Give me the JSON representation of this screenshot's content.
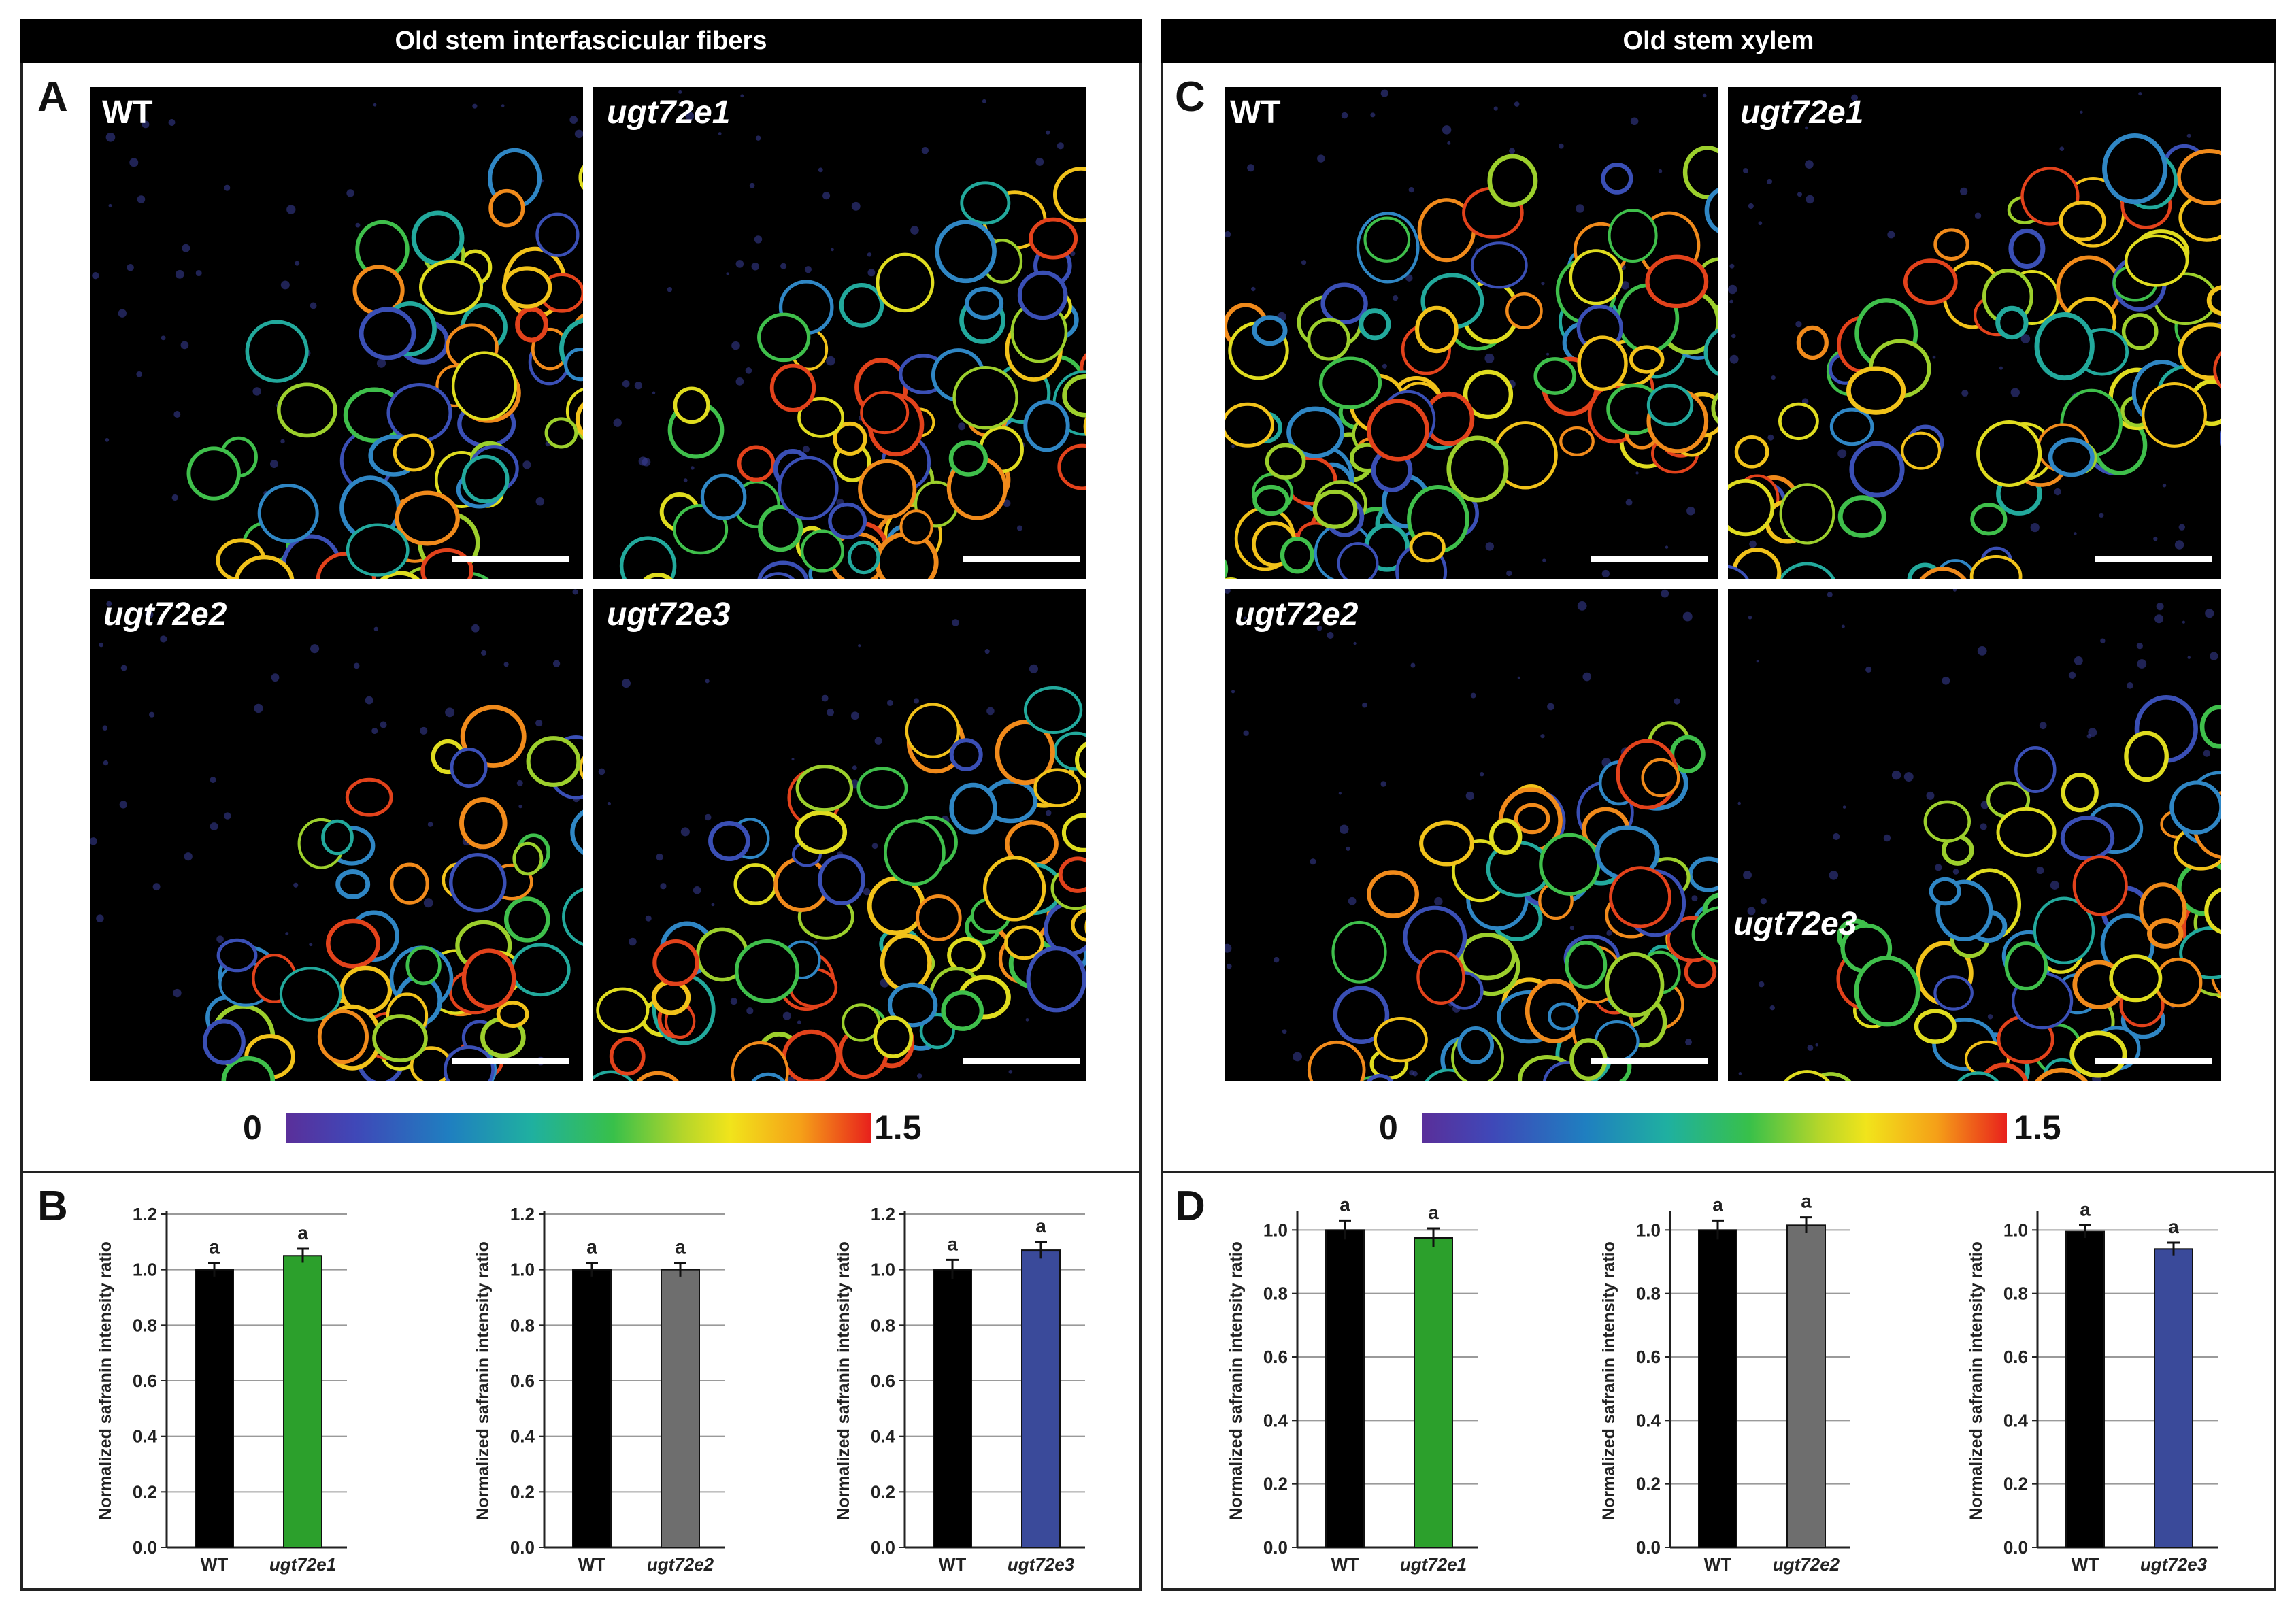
{
  "panel_a": {
    "header": "Old stem interfascicular fibers",
    "label": "A",
    "images": [
      {
        "genotype": "WT"
      },
      {
        "genotype": "ugt72e1"
      },
      {
        "genotype": "ugt72e2"
      },
      {
        "genotype": "ugt72e3"
      }
    ],
    "colorbar": {
      "min": "0",
      "max": "1.5"
    }
  },
  "panel_c": {
    "header": "Old stem xylem",
    "label": "C",
    "images": [
      {
        "genotype": "WT"
      },
      {
        "genotype": "ugt72e1"
      },
      {
        "genotype": "ugt72e2"
      },
      {
        "genotype": "ugt72e3"
      }
    ],
    "colorbar": {
      "min": "0",
      "max": "1.5"
    }
  },
  "panel_b": {
    "label": "B"
  },
  "panel_d": {
    "label": "D"
  },
  "colors": {
    "wt": "#000000",
    "ugt72e1": "#2ca02c",
    "ugt72e2": "#6e6e6e",
    "ugt72e3": "#3a4a9a"
  },
  "chart_data": [
    {
      "type": "bar",
      "panel": "B",
      "categories": [
        "WT",
        "ugt72e1"
      ],
      "values": [
        1.0,
        1.05
      ],
      "errors": [
        0.025,
        0.025
      ],
      "letters": [
        "a",
        "a"
      ],
      "ylabel": "Normalized safranin intensity ratio",
      "ylim": [
        0,
        1.2
      ],
      "yticks": [
        "0.0",
        "0.2",
        "0.4",
        "0.6",
        "0.8",
        "1.0",
        "1.2"
      ],
      "colors": [
        "#000000",
        "#2ca02c"
      ]
    },
    {
      "type": "bar",
      "panel": "B",
      "categories": [
        "WT",
        "ugt72e2"
      ],
      "values": [
        1.0,
        1.0
      ],
      "errors": [
        0.025,
        0.025
      ],
      "letters": [
        "a",
        "a"
      ],
      "ylabel": "Normalized safranin intensity ratio",
      "ylim": [
        0,
        1.2
      ],
      "yticks": [
        "0.0",
        "0.2",
        "0.4",
        "0.6",
        "0.8",
        "1.0",
        "1.2"
      ],
      "colors": [
        "#000000",
        "#6e6e6e"
      ]
    },
    {
      "type": "bar",
      "panel": "B",
      "categories": [
        "WT",
        "ugt72e3"
      ],
      "values": [
        1.0,
        1.07
      ],
      "errors": [
        0.035,
        0.03
      ],
      "letters": [
        "a",
        "a"
      ],
      "ylabel": "Normalized safranin intensity ratio",
      "ylim": [
        0,
        1.2
      ],
      "yticks": [
        "0.0",
        "0.2",
        "0.4",
        "0.6",
        "0.8",
        "1.0",
        "1.2"
      ],
      "colors": [
        "#000000",
        "#3a4a9a"
      ]
    },
    {
      "type": "bar",
      "panel": "D",
      "categories": [
        "WT",
        "ugt72e1"
      ],
      "values": [
        1.0,
        0.975
      ],
      "errors": [
        0.03,
        0.03
      ],
      "letters": [
        "a",
        "a"
      ],
      "ylabel": "Normalized safranin intensity ratio",
      "ylim": [
        0,
        1.05
      ],
      "yticks": [
        "0.0",
        "0.2",
        "0.4",
        "0.6",
        "0.8",
        "1.0"
      ],
      "colors": [
        "#000000",
        "#2ca02c"
      ]
    },
    {
      "type": "bar",
      "panel": "D",
      "categories": [
        "WT",
        "ugt72e2"
      ],
      "values": [
        1.0,
        1.015
      ],
      "errors": [
        0.03,
        0.025
      ],
      "letters": [
        "a",
        "a"
      ],
      "ylabel": "Normalized safranin intensity ratio",
      "ylim": [
        0,
        1.05
      ],
      "yticks": [
        "0.0",
        "0.2",
        "0.4",
        "0.6",
        "0.8",
        "1.0"
      ],
      "colors": [
        "#000000",
        "#6e6e6e"
      ]
    },
    {
      "type": "bar",
      "panel": "D",
      "categories": [
        "WT",
        "ugt72e3"
      ],
      "values": [
        0.995,
        0.94
      ],
      "errors": [
        0.02,
        0.02
      ],
      "letters": [
        "a",
        "a"
      ],
      "ylabel": "Normalized safranin intensity ratio",
      "ylim": [
        0,
        1.05
      ],
      "yticks": [
        "0.0",
        "0.2",
        "0.4",
        "0.6",
        "0.8",
        "1.0"
      ],
      "colors": [
        "#000000",
        "#3a4a9a"
      ]
    }
  ]
}
